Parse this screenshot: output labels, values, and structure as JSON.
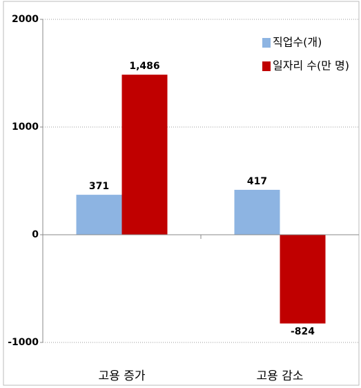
{
  "chart_data": {
    "type": "bar",
    "categories": [
      "고용 증가",
      "고용 감소"
    ],
    "series": [
      {
        "name": "직업수(개)",
        "color": "#8db4e2",
        "values": [
          371,
          417
        ],
        "value_labels": [
          "371",
          "417"
        ]
      },
      {
        "name": "일자리 수(만 명)",
        "color": "#c00000",
        "values": [
          1486,
          -824
        ],
        "value_labels": [
          "1,486",
          "-824"
        ]
      }
    ],
    "ylim": [
      -1000,
      2000
    ],
    "yticks": [
      -1000,
      0,
      1000,
      2000
    ],
    "grid": true,
    "legend": "upper right"
  }
}
